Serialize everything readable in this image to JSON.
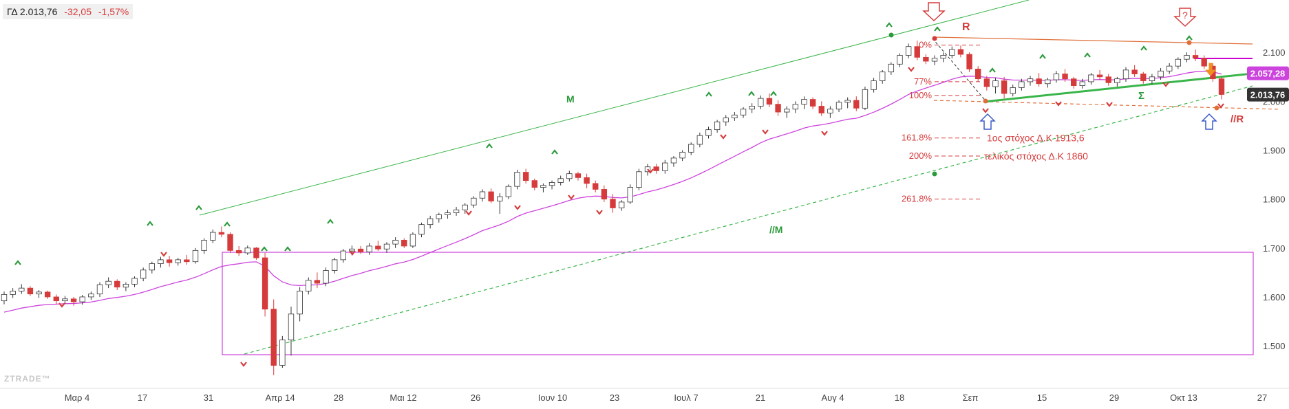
{
  "header": {
    "symbol": "ΓΔ",
    "price": "2.013,76",
    "change": "-32,05",
    "change_pct": "-1,57%"
  },
  "watermark": "ZTRADE™",
  "colors": {
    "up_candle": "#ffffff",
    "down_candle": "#d63b3b",
    "ma": "#cc44dd",
    "trend_green": "#3ab54a",
    "resistance": "#e0703a",
    "fib": "#d63b3b",
    "arrow_blue": "#3a5bc8",
    "box": "#cc44dd"
  },
  "chart_data": {
    "type": "candlestick",
    "x_ticks": [
      "Μαρ 4",
      "17",
      "31",
      "Απρ 14",
      "28",
      "Μαι 12",
      "26",
      "Ιουν 10",
      "23",
      "Ιουλ 7",
      "21",
      "Αυγ 4",
      "18",
      "Σεπ",
      "15",
      "29",
      "Οκτ 13",
      "27"
    ],
    "y_ticks": [
      "2.100",
      "2.000",
      "1.900",
      "1.800",
      "1.700",
      "1.600",
      "1.500"
    ],
    "ylim": [
      1420,
      2165
    ],
    "price_labels": [
      {
        "text": "2.057,28",
        "value": 2057.28,
        "color": "#cc44dd"
      },
      {
        "text": "2.013,76",
        "value": 2013.76,
        "color": "#333333"
      }
    ],
    "trend_labels": {
      "M": "M",
      "M2": "//M",
      "R": "R",
      "R2": "//R",
      "S": "Σ"
    },
    "fib_levels": [
      {
        "label": "0%",
        "value": 2115
      },
      {
        "label": "77%",
        "value": 2040
      },
      {
        "label": "100%",
        "value": 2012
      },
      {
        "label": "161.8%",
        "value": 1925
      },
      {
        "label": "200%",
        "value": 1888
      },
      {
        "label": "261.8%",
        "value": 1800
      }
    ],
    "annotations": [
      "1ος στόχος Δ.Κ 1913,6",
      "τελικός στόχος Δ.Κ 1860"
    ],
    "question_mark": "?",
    "ohlc": [
      [
        1592,
        1611,
        1585,
        1605
      ],
      [
        1605,
        1618,
        1598,
        1612
      ],
      [
        1612,
        1626,
        1606,
        1618
      ],
      [
        1618,
        1622,
        1602,
        1606
      ],
      [
        1606,
        1614,
        1598,
        1610
      ],
      [
        1610,
        1613,
        1596,
        1600
      ],
      [
        1600,
        1605,
        1585,
        1592
      ],
      [
        1592,
        1602,
        1586,
        1596
      ],
      [
        1596,
        1600,
        1582,
        1590
      ],
      [
        1590,
        1604,
        1584,
        1600
      ],
      [
        1600,
        1611,
        1594,
        1606
      ],
      [
        1606,
        1630,
        1600,
        1625
      ],
      [
        1625,
        1640,
        1618,
        1632
      ],
      [
        1632,
        1636,
        1614,
        1620
      ],
      [
        1620,
        1630,
        1612,
        1626
      ],
      [
        1626,
        1642,
        1620,
        1638
      ],
      [
        1638,
        1660,
        1632,
        1655
      ],
      [
        1655,
        1672,
        1648,
        1668
      ],
      [
        1668,
        1682,
        1660,
        1676
      ],
      [
        1676,
        1684,
        1662,
        1670
      ],
      [
        1670,
        1680,
        1664,
        1676
      ],
      [
        1676,
        1686,
        1666,
        1672
      ],
      [
        1672,
        1700,
        1668,
        1695
      ],
      [
        1695,
        1720,
        1688,
        1716
      ],
      [
        1716,
        1738,
        1710,
        1732
      ],
      [
        1732,
        1744,
        1722,
        1728
      ],
      [
        1728,
        1732,
        1690,
        1695
      ],
      [
        1695,
        1704,
        1684,
        1690
      ],
      [
        1690,
        1705,
        1686,
        1700
      ],
      [
        1700,
        1702,
        1676,
        1680
      ],
      [
        1680,
        1690,
        1560,
        1575
      ],
      [
        1575,
        1595,
        1440,
        1460
      ],
      [
        1460,
        1520,
        1455,
        1512
      ],
      [
        1512,
        1580,
        1480,
        1565
      ],
      [
        1565,
        1620,
        1550,
        1612
      ],
      [
        1612,
        1640,
        1605,
        1634
      ],
      [
        1634,
        1650,
        1618,
        1628
      ],
      [
        1628,
        1660,
        1622,
        1654
      ],
      [
        1654,
        1680,
        1648,
        1676
      ],
      [
        1676,
        1698,
        1670,
        1694
      ],
      [
        1694,
        1705,
        1685,
        1698
      ],
      [
        1698,
        1704,
        1688,
        1692
      ],
      [
        1692,
        1710,
        1686,
        1704
      ],
      [
        1704,
        1715,
        1694,
        1698
      ],
      [
        1698,
        1712,
        1690,
        1708
      ],
      [
        1708,
        1722,
        1700,
        1716
      ],
      [
        1716,
        1720,
        1700,
        1704
      ],
      [
        1704,
        1732,
        1700,
        1728
      ],
      [
        1728,
        1752,
        1722,
        1748
      ],
      [
        1748,
        1766,
        1740,
        1760
      ],
      [
        1760,
        1772,
        1752,
        1768
      ],
      [
        1768,
        1778,
        1760,
        1772
      ],
      [
        1772,
        1784,
        1766,
        1778
      ],
      [
        1778,
        1792,
        1770,
        1788
      ],
      [
        1788,
        1806,
        1782,
        1802
      ],
      [
        1802,
        1820,
        1795,
        1815
      ],
      [
        1815,
        1822,
        1792,
        1796
      ],
      [
        1796,
        1812,
        1770,
        1805
      ],
      [
        1805,
        1830,
        1800,
        1826
      ],
      [
        1826,
        1860,
        1820,
        1855
      ],
      [
        1855,
        1862,
        1832,
        1838
      ],
      [
        1838,
        1842,
        1818,
        1824
      ],
      [
        1824,
        1832,
        1814,
        1828
      ],
      [
        1828,
        1838,
        1820,
        1834
      ],
      [
        1834,
        1848,
        1828,
        1842
      ],
      [
        1842,
        1858,
        1836,
        1852
      ],
      [
        1852,
        1856,
        1838,
        1844
      ],
      [
        1844,
        1852,
        1822,
        1832
      ],
      [
        1832,
        1838,
        1814,
        1820
      ],
      [
        1820,
        1828,
        1794,
        1800
      ],
      [
        1800,
        1810,
        1772,
        1782
      ],
      [
        1782,
        1798,
        1776,
        1794
      ],
      [
        1794,
        1830,
        1790,
        1824
      ],
      [
        1824,
        1862,
        1818,
        1856
      ],
      [
        1856,
        1872,
        1848,
        1866
      ],
      [
        1866,
        1872,
        1852,
        1858
      ],
      [
        1858,
        1880,
        1852,
        1874
      ],
      [
        1874,
        1888,
        1866,
        1884
      ],
      [
        1884,
        1900,
        1878,
        1896
      ],
      [
        1896,
        1916,
        1890,
        1912
      ],
      [
        1912,
        1936,
        1906,
        1930
      ],
      [
        1930,
        1948,
        1924,
        1942
      ],
      [
        1942,
        1962,
        1936,
        1958
      ],
      [
        1958,
        1972,
        1950,
        1966
      ],
      [
        1966,
        1978,
        1960,
        1972
      ],
      [
        1972,
        1988,
        1966,
        1984
      ],
      [
        1984,
        1996,
        1976,
        1990
      ],
      [
        1990,
        2012,
        1984,
        2006
      ],
      [
        2006,
        2016,
        1988,
        1994
      ],
      [
        1994,
        2002,
        1970,
        1978
      ],
      [
        1978,
        1990,
        1966,
        1984
      ],
      [
        1984,
        2000,
        1976,
        1994
      ],
      [
        1994,
        2010,
        1984,
        2004
      ],
      [
        2004,
        2008,
        1984,
        1990
      ],
      [
        1990,
        2000,
        1970,
        1976
      ],
      [
        1976,
        1990,
        1966,
        1984
      ],
      [
        1984,
        2002,
        1978,
        1998
      ],
      [
        1998,
        2008,
        1986,
        2002
      ],
      [
        2002,
        2010,
        1980,
        1986
      ],
      [
        1986,
        2030,
        1982,
        2024
      ],
      [
        2024,
        2048,
        2018,
        2042
      ],
      [
        2042,
        2064,
        2036,
        2060
      ],
      [
        2060,
        2080,
        2054,
        2076
      ],
      [
        2076,
        2098,
        2070,
        2094
      ],
      [
        2094,
        2118,
        2088,
        2112
      ],
      [
        2112,
        2124,
        2084,
        2090
      ],
      [
        2090,
        2096,
        2076,
        2082
      ],
      [
        2082,
        2094,
        2074,
        2088
      ],
      [
        2088,
        2100,
        2080,
        2094
      ],
      [
        2094,
        2112,
        2088,
        2106
      ],
      [
        2106,
        2114,
        2090,
        2096
      ],
      [
        2096,
        2100,
        2060,
        2066
      ],
      [
        2066,
        2072,
        2040,
        2046
      ],
      [
        2046,
        2052,
        2022,
        2030
      ],
      [
        2030,
        2048,
        2016,
        2042
      ],
      [
        2042,
        2050,
        2006,
        2016
      ],
      [
        2016,
        2034,
        2010,
        2028
      ],
      [
        2028,
        2046,
        2022,
        2040
      ],
      [
        2040,
        2052,
        2032,
        2046
      ],
      [
        2046,
        2058,
        2030,
        2036
      ],
      [
        2036,
        2048,
        2028,
        2044
      ],
      [
        2044,
        2062,
        2038,
        2056
      ],
      [
        2056,
        2066,
        2040,
        2046
      ],
      [
        2046,
        2050,
        2026,
        2032
      ],
      [
        2032,
        2046,
        2026,
        2040
      ],
      [
        2040,
        2058,
        2034,
        2054
      ],
      [
        2054,
        2064,
        2044,
        2050
      ],
      [
        2050,
        2056,
        2032,
        2038
      ],
      [
        2038,
        2050,
        2030,
        2046
      ],
      [
        2046,
        2070,
        2040,
        2064
      ],
      [
        2064,
        2074,
        2050,
        2056
      ],
      [
        2056,
        2060,
        2036,
        2042
      ],
      [
        2042,
        2056,
        2036,
        2050
      ],
      [
        2050,
        2068,
        2044,
        2062
      ],
      [
        2062,
        2078,
        2056,
        2072
      ],
      [
        2072,
        2090,
        2066,
        2086
      ],
      [
        2086,
        2100,
        2080,
        2094
      ],
      [
        2094,
        2106,
        2082,
        2088
      ],
      [
        2088,
        2094,
        2066,
        2072
      ],
      [
        2072,
        2078,
        2040,
        2046
      ],
      [
        2046,
        2050,
        2004,
        2014
      ]
    ]
  }
}
